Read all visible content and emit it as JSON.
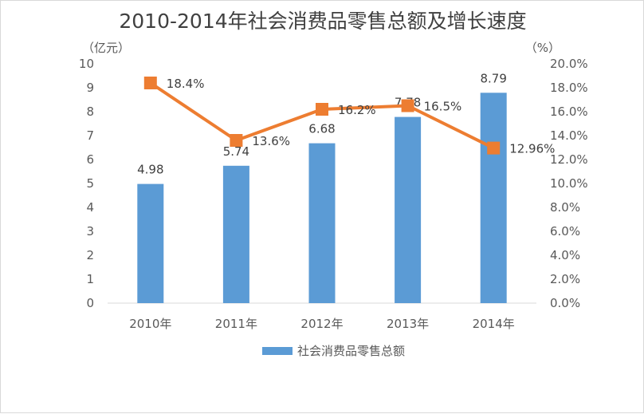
{
  "chart_data": {
    "type": "bar",
    "title": "2010-2014年社会消费品零售总额及增长速度",
    "categories": [
      "2010年",
      "2011年",
      "2012年",
      "2013年",
      "2014年"
    ],
    "series": [
      {
        "name": "社会消费品零售总额",
        "type": "bar",
        "axis": "left",
        "color": "#5b9bd5",
        "values": [
          4.98,
          5.74,
          6.68,
          7.78,
          8.79
        ],
        "labels": [
          "4.98",
          "5.74",
          "6.68",
          "7.78",
          "8.79"
        ]
      },
      {
        "name": "增长速度",
        "type": "line",
        "axis": "right",
        "color": "#ed7d31",
        "values": [
          18.4,
          13.6,
          16.2,
          16.5,
          12.96
        ],
        "labels": [
          "18.4%",
          "13.6%",
          "16.2%",
          "16.5%",
          "12.96%"
        ]
      }
    ],
    "ylabel_left": "（亿元）",
    "ylabel_right": "（%）",
    "ylim_left": [
      0,
      10
    ],
    "ylim_right": [
      0,
      20
    ],
    "yticks_left": [
      "0",
      "1",
      "2",
      "3",
      "4",
      "5",
      "6",
      "7",
      "8",
      "9",
      "10"
    ],
    "yticks_right": [
      "0.0%",
      "2.0%",
      "4.0%",
      "6.0%",
      "8.0%",
      "10.0%",
      "12.0%",
      "14.0%",
      "16.0%",
      "18.0%",
      "20.0%"
    ],
    "legend": [
      "社会消费品零售总额"
    ],
    "legend_position": "bottom",
    "grid": false
  }
}
